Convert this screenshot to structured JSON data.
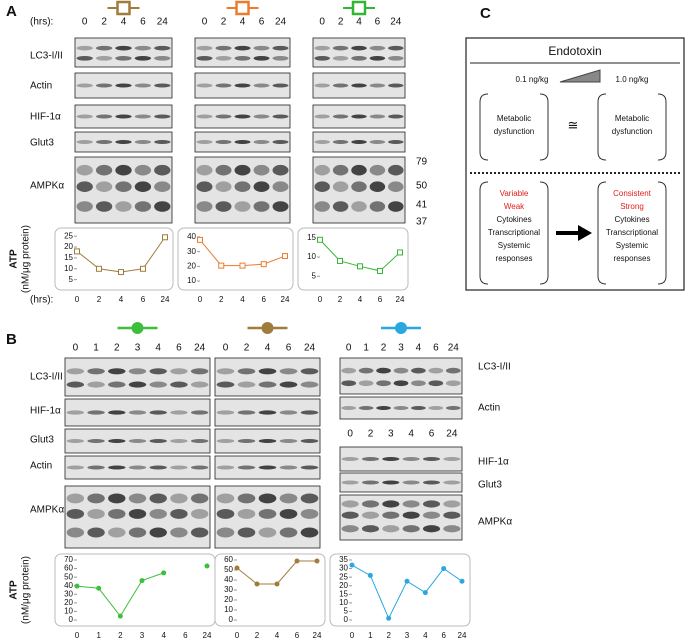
{
  "panel_a": {
    "label": "A",
    "hours_label": "(hrs):",
    "lanes": [
      [
        "0",
        "2",
        "4",
        "6",
        "24"
      ],
      [
        "0",
        "2",
        "4",
        "6",
        "24"
      ],
      [
        "0",
        "2",
        "4",
        "6",
        "24"
      ]
    ],
    "rows": [
      "LC3-I/II",
      "Actin",
      "HIF-1α",
      "Glut3",
      "AMPKα"
    ],
    "mw_markers": [
      "79",
      "50",
      "41",
      "37"
    ]
  },
  "panel_b": {
    "label": "B",
    "lanes": [
      [
        "0",
        "1",
        "2",
        "3",
        "4",
        "6",
        "24"
      ],
      [
        "0",
        "2",
        "4",
        "6",
        "24"
      ],
      [
        "0",
        "1",
        "2",
        "3",
        "4",
        "6",
        "24"
      ]
    ],
    "lanes_lower": [
      "0",
      "2",
      "3",
      "4",
      "6",
      "24"
    ],
    "rows": [
      "LC3-I/II",
      "HIF-1α",
      "Glut3",
      "Actin",
      "AMPKα"
    ],
    "right_rows": [
      "LC3-I/II",
      "Actin",
      "HIF-1α",
      "Glut3",
      "AMPKα"
    ]
  },
  "panel_c": {
    "label": "C",
    "title": "Endotoxin",
    "low_dose": "0.1 ng/kg",
    "high_dose": "1.0 ng/kg",
    "left_top": [
      "Metabolic",
      "dysfunction"
    ],
    "approx": "≅",
    "right_top": [
      "Metabolic",
      "dysfunction"
    ],
    "left_bottom_red": [
      "Variable",
      "Weak"
    ],
    "left_bottom": [
      "Cytokines",
      "Transcriptional",
      "Systemic",
      "responses"
    ],
    "right_bottom_red": [
      "Consistent",
      "Strong"
    ],
    "right_bottom": [
      "Cytokines",
      "Transcriptional",
      "Systemic",
      "responses"
    ]
  },
  "chart_data": [
    {
      "type": "line",
      "y_title": "ATP",
      "y_unit": "(nM/μg protein)",
      "x_label": "(hrs):",
      "categories": [
        "0",
        "2",
        "4",
        "6",
        "24"
      ],
      "values": [
        18,
        10,
        8.5,
        10,
        24.5
      ],
      "color": "#a07c3c",
      "marker": "open-square",
      "ylim": [
        3,
        26
      ],
      "yticks": [
        5,
        10,
        15,
        20,
        25
      ]
    },
    {
      "type": "line",
      "categories": [
        "0",
        "2",
        "4",
        "6",
        "24"
      ],
      "values": [
        38,
        20.5,
        20.5,
        21.5,
        27
      ],
      "color": "#ec7b2f",
      "marker": "open-square",
      "ylim": [
        8,
        42
      ],
      "yticks": [
        10,
        20,
        30,
        40
      ]
    },
    {
      "type": "line",
      "categories": [
        "0",
        "2",
        "4",
        "6",
        "24"
      ],
      "values": [
        14.5,
        9,
        7.6,
        6.4,
        11.2
      ],
      "color": "#34b534",
      "marker": "open-square",
      "ylim": [
        3,
        16
      ],
      "yticks": [
        5,
        10,
        15
      ]
    },
    {
      "type": "line",
      "y_title": "ATP",
      "y_unit": "(nM/μg protein)",
      "categories": [
        "0",
        "1",
        "2",
        "3",
        "4",
        "6",
        "24"
      ],
      "values": [
        39.5,
        37,
        4.5,
        46,
        55,
        null,
        63
      ],
      "color": "#3cc03c",
      "marker": "filled-circle",
      "ylim": [
        0,
        70
      ],
      "yticks": [
        0,
        10,
        20,
        30,
        40,
        50,
        60,
        70
      ]
    },
    {
      "type": "line",
      "categories": [
        "0",
        "2",
        "4",
        "6",
        "24"
      ],
      "values": [
        52,
        36,
        36,
        59,
        59
      ],
      "color": "#a07c3c",
      "marker": "filled-circle",
      "ylim": [
        0,
        60
      ],
      "yticks": [
        0,
        10,
        20,
        30,
        40,
        50,
        60
      ]
    },
    {
      "type": "line",
      "categories": [
        "0",
        "1",
        "2",
        "3",
        "4",
        "6",
        "24"
      ],
      "values": [
        32,
        26,
        1,
        22.6,
        16,
        30,
        22.6
      ],
      "color": "#2aa7e0",
      "marker": "filled-circle",
      "ylim": [
        0,
        35
      ],
      "yticks": [
        0,
        5,
        10,
        15,
        20,
        25,
        30,
        35
      ]
    }
  ]
}
